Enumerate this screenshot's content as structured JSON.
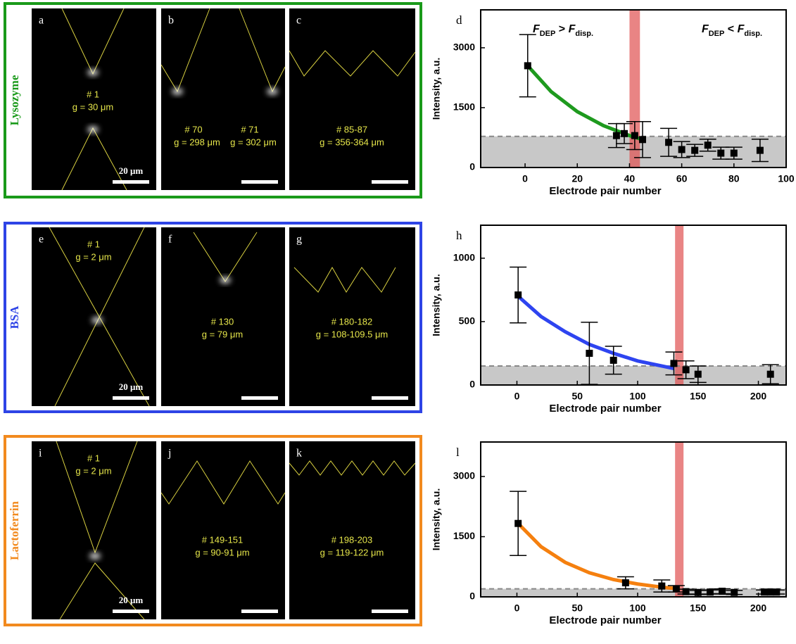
{
  "rows": [
    {
      "label": "Lysozyme",
      "color": "#1a9a1a",
      "panels": [
        {
          "letter": "a",
          "texts": [
            "# 1",
            "g = 30 μm"
          ],
          "scale": "20 μm"
        },
        {
          "letter": "b",
          "texts": [
            "# 70",
            "g = 298 μm",
            "# 71",
            "g = 302 μm"
          ]
        },
        {
          "letter": "c",
          "texts": [
            "# 85-87",
            "g = 356-364 μm"
          ]
        }
      ]
    },
    {
      "label": "BSA",
      "color": "#2e44e6",
      "panels": [
        {
          "letter": "e",
          "texts": [
            "# 1",
            "g = 2 μm"
          ],
          "scale": "20 μm"
        },
        {
          "letter": "f",
          "texts": [
            "# 130",
            "g = 79 μm"
          ]
        },
        {
          "letter": "g",
          "texts": [
            "# 180-182",
            "g = 108-109.5 μm"
          ]
        }
      ]
    },
    {
      "label": "Lactoferrin",
      "color": "#f28a1e",
      "panels": [
        {
          "letter": "i",
          "texts": [
            "# 1",
            "g = 2 μm"
          ],
          "scale": "20 μm"
        },
        {
          "letter": "j",
          "texts": [
            "# 149-151",
            "g = 90-91 μm"
          ]
        },
        {
          "letter": "k",
          "texts": [
            "# 198-203",
            "g = 119-122 μm"
          ]
        }
      ]
    }
  ],
  "chart_data": [
    {
      "type": "scatter",
      "letter": "d",
      "xlabel": "Electrode pair number",
      "ylabel": "Intensity, a.u.",
      "xlim": [
        -17,
        100
      ],
      "ylim": [
        0,
        3950
      ],
      "xticks": [
        0,
        20,
        40,
        60,
        80,
        100
      ],
      "yticks": [
        0,
        1500,
        3000
      ],
      "x": [
        1,
        35,
        38,
        42,
        45,
        55,
        60,
        65,
        70,
        75,
        80,
        90
      ],
      "values": [
        2550,
        800,
        850,
        800,
        700,
        630,
        450,
        430,
        560,
        360,
        360,
        430
      ],
      "errors": [
        780,
        300,
        250,
        350,
        450,
        350,
        200,
        150,
        150,
        150,
        150,
        280
      ],
      "color": "#000000",
      "fit": {
        "x": [
          1,
          10,
          20,
          30,
          40,
          45
        ],
        "values": [
          2550,
          1900,
          1400,
          1050,
          800,
          700
        ],
        "color": "#1e9a1e"
      },
      "threshold": 780,
      "band": [
        40,
        44
      ],
      "annotations": [
        {
          "parts": [
            "F",
            "DEP",
            " > ",
            "F",
            "disp."
          ]
        },
        {
          "parts": [
            "F",
            "DEP",
            " < ",
            "F",
            "disp."
          ]
        }
      ]
    },
    {
      "type": "scatter",
      "letter": "h",
      "xlabel": "Electrode pair number",
      "ylabel": "Intensity, a.u.",
      "xlim": [
        -30,
        223
      ],
      "ylim": [
        0,
        1260
      ],
      "xticks": [
        0,
        50,
        100,
        150,
        200
      ],
      "yticks": [
        0,
        500,
        1000
      ],
      "x": [
        1,
        60,
        80,
        130,
        140,
        150,
        210
      ],
      "values": [
        710,
        250,
        195,
        170,
        120,
        85,
        85
      ],
      "errors": [
        220,
        245,
        110,
        90,
        70,
        65,
        75
      ],
      "color": "#000000",
      "fit": {
        "x": [
          1,
          20,
          40,
          60,
          80,
          100,
          130
        ],
        "values": [
          700,
          540,
          420,
          320,
          250,
          190,
          130
        ],
        "color": "#2e44f0"
      },
      "threshold": 150,
      "band": [
        131,
        138
      ]
    },
    {
      "type": "scatter",
      "letter": "l",
      "xlabel": "Electrode pair number",
      "ylabel": "Intensity, a.u.",
      "xlim": [
        -30,
        223
      ],
      "ylim": [
        0,
        3860
      ],
      "xticks": [
        0,
        50,
        100,
        150,
        200
      ],
      "yticks": [
        0,
        1500,
        3000
      ],
      "x": [
        1,
        90,
        120,
        132,
        140,
        150,
        160,
        170,
        180,
        205,
        210,
        215
      ],
      "values": [
        1830,
        350,
        270,
        200,
        130,
        110,
        120,
        140,
        110,
        120,
        120,
        120
      ],
      "errors": [
        800,
        150,
        150,
        80,
        60,
        50,
        50,
        60,
        50,
        50,
        50,
        50
      ],
      "color": "#000000",
      "fit": {
        "x": [
          1,
          20,
          40,
          60,
          80,
          100,
          120,
          135
        ],
        "values": [
          1830,
          1250,
          860,
          600,
          430,
          320,
          240,
          200
        ],
        "color": "#f5800f"
      },
      "threshold": 200,
      "band": [
        131,
        138
      ]
    }
  ]
}
